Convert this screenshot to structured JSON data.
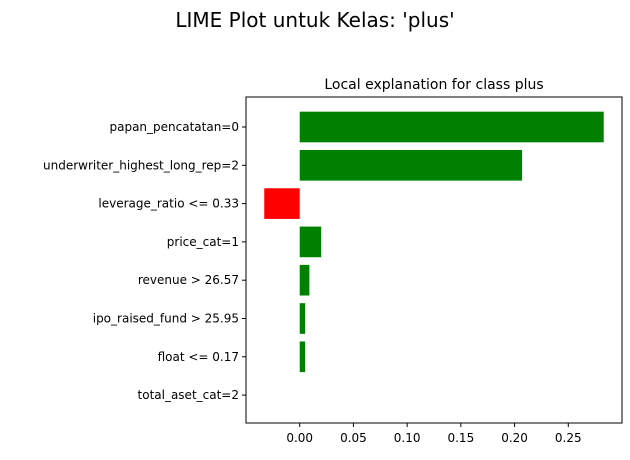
{
  "figure": {
    "suptitle": "LIME Plot untuk Kelas: 'plus'"
  },
  "chart_data": {
    "type": "bar",
    "orientation": "horizontal",
    "title": "Local explanation for class plus",
    "xlabel": "",
    "ylabel": "",
    "xlim": [
      -0.05,
      0.3
    ],
    "xticks": [
      0.0,
      0.05,
      0.1,
      0.15,
      0.2,
      0.25
    ],
    "xtick_labels": [
      "0.00",
      "0.05",
      "0.10",
      "0.15",
      "0.20",
      "0.25"
    ],
    "grid": false,
    "legend": false,
    "positive_color": "#008000",
    "negative_color": "#ff0000",
    "categories": [
      "papan_pencatatan=0",
      "underwriter_highest_long_rep=2",
      "leverage_ratio <= 0.33",
      "price_cat=1",
      "revenue > 26.57",
      "ipo_raised_fund > 25.95",
      "float <= 0.17",
      "total_aset_cat=2"
    ],
    "values": [
      0.283,
      0.207,
      -0.033,
      0.02,
      0.009,
      0.005,
      0.005,
      0.0
    ]
  }
}
